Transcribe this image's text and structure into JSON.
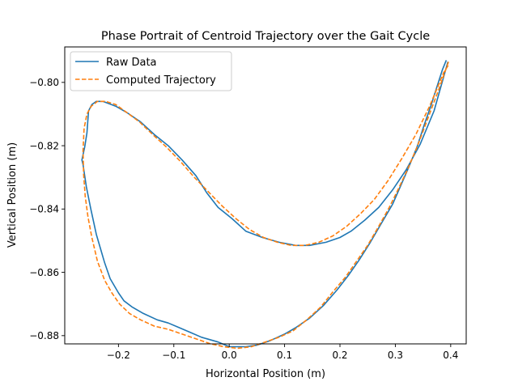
{
  "chart_data": {
    "type": "line",
    "title": "Phase Portrait of Centroid Trajectory over the Gait Cycle",
    "xlabel": "Horizontal Position (m)",
    "ylabel": "Vertical Position (m)",
    "xlim": [
      -0.297,
      0.428
    ],
    "ylim": [
      -0.8826,
      -0.7888
    ],
    "xticks": [
      -0.2,
      -0.1,
      0.0,
      0.1,
      0.2,
      0.3,
      0.4
    ],
    "xtick_labels": [
      "−0.2",
      "−0.1",
      "0.0",
      "0.1",
      "0.2",
      "0.3",
      "0.4"
    ],
    "yticks": [
      -0.88,
      -0.86,
      -0.84,
      -0.82,
      -0.8
    ],
    "ytick_labels": [
      "−0.88",
      "−0.86",
      "−0.84",
      "−0.82",
      "−0.80"
    ],
    "grid": false,
    "legend_position": "upper-left",
    "series": [
      {
        "name": "Raw Data",
        "color": "#1f77b4",
        "style": "solid",
        "x": [
          0.392,
          0.385,
          0.375,
          0.365,
          0.352,
          0.34,
          0.325,
          0.31,
          0.295,
          0.275,
          0.255,
          0.235,
          0.215,
          0.195,
          0.17,
          0.145,
          0.12,
          0.1,
          0.075,
          0.05,
          0.03,
          0.0,
          -0.02,
          -0.05,
          -0.07,
          -0.09,
          -0.11,
          -0.13,
          -0.155,
          -0.175,
          -0.19,
          -0.2,
          -0.215,
          -0.225,
          -0.24,
          -0.25,
          -0.258,
          -0.264,
          -0.266,
          -0.261,
          -0.257,
          -0.254,
          -0.248,
          -0.24,
          -0.228,
          -0.205,
          -0.185,
          -0.16,
          -0.135,
          -0.11,
          -0.085,
          -0.06,
          -0.04,
          -0.02,
          0.005,
          0.03,
          0.06,
          0.09,
          0.12,
          0.145,
          0.175,
          0.2,
          0.22,
          0.245,
          0.27,
          0.295,
          0.32,
          0.345,
          0.37,
          0.395
        ],
        "y": [
          -0.793,
          -0.796,
          -0.8015,
          -0.807,
          -0.8135,
          -0.82,
          -0.8265,
          -0.8325,
          -0.8385,
          -0.8445,
          -0.8505,
          -0.856,
          -0.861,
          -0.8655,
          -0.8705,
          -0.8745,
          -0.8775,
          -0.8795,
          -0.8815,
          -0.883,
          -0.8835,
          -0.8835,
          -0.882,
          -0.8805,
          -0.879,
          -0.8775,
          -0.876,
          -0.875,
          -0.873,
          -0.871,
          -0.869,
          -0.8665,
          -0.862,
          -0.857,
          -0.848,
          -0.84,
          -0.833,
          -0.826,
          -0.8245,
          -0.8205,
          -0.816,
          -0.809,
          -0.807,
          -0.806,
          -0.806,
          -0.8075,
          -0.8095,
          -0.8125,
          -0.8165,
          -0.82,
          -0.8245,
          -0.8295,
          -0.835,
          -0.8395,
          -0.843,
          -0.847,
          -0.849,
          -0.8505,
          -0.8515,
          -0.8515,
          -0.8505,
          -0.849,
          -0.847,
          -0.8435,
          -0.8395,
          -0.834,
          -0.8275,
          -0.8195,
          -0.809,
          -0.7935
        ]
      },
      {
        "name": "Computed Trajectory",
        "color": "#ff7f0e",
        "style": "dashed",
        "x": [
          0.396,
          0.388,
          0.378,
          0.366,
          0.352,
          0.338,
          0.322,
          0.306,
          0.289,
          0.27,
          0.25,
          0.23,
          0.21,
          0.188,
          0.165,
          0.14,
          0.115,
          0.09,
          0.065,
          0.04,
          0.015,
          -0.01,
          -0.035,
          -0.06,
          -0.085,
          -0.11,
          -0.135,
          -0.16,
          -0.18,
          -0.198,
          -0.212,
          -0.225,
          -0.238,
          -0.248,
          -0.255,
          -0.26,
          -0.263,
          -0.264,
          -0.262,
          -0.257,
          -0.249,
          -0.238,
          -0.223,
          -0.205,
          -0.185,
          -0.162,
          -0.138,
          -0.113,
          -0.088,
          -0.063,
          -0.038,
          -0.013,
          0.012,
          0.037,
          0.062,
          0.087,
          0.112,
          0.137,
          0.162,
          0.187,
          0.212,
          0.237,
          0.262,
          0.287,
          0.312,
          0.337,
          0.362,
          0.387,
          0.396
        ],
        "y": [
          -0.7935,
          -0.7975,
          -0.8025,
          -0.808,
          -0.8145,
          -0.821,
          -0.8275,
          -0.8335,
          -0.8395,
          -0.8455,
          -0.8515,
          -0.8565,
          -0.8615,
          -0.866,
          -0.871,
          -0.875,
          -0.8785,
          -0.8805,
          -0.882,
          -0.8835,
          -0.884,
          -0.8835,
          -0.8825,
          -0.881,
          -0.8795,
          -0.878,
          -0.877,
          -0.875,
          -0.873,
          -0.87,
          -0.8665,
          -0.8625,
          -0.8565,
          -0.849,
          -0.8425,
          -0.836,
          -0.829,
          -0.8215,
          -0.8145,
          -0.81,
          -0.8075,
          -0.806,
          -0.806,
          -0.807,
          -0.8095,
          -0.8125,
          -0.8165,
          -0.8205,
          -0.825,
          -0.83,
          -0.8345,
          -0.839,
          -0.843,
          -0.8465,
          -0.849,
          -0.8505,
          -0.8515,
          -0.8515,
          -0.8505,
          -0.8485,
          -0.8455,
          -0.8415,
          -0.837,
          -0.831,
          -0.824,
          -0.8165,
          -0.8075,
          -0.797,
          -0.7945
        ]
      }
    ]
  }
}
